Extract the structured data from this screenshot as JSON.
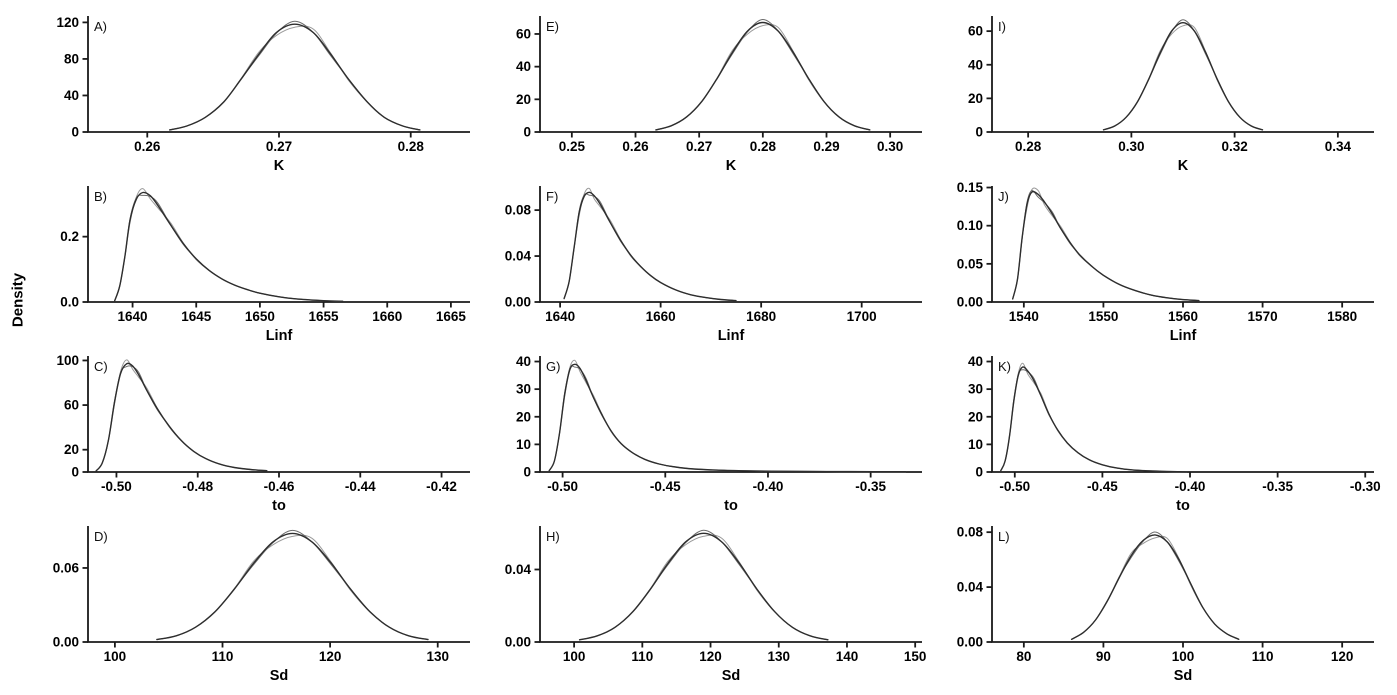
{
  "figure": {
    "ylabel": "Density",
    "colors": {
      "axis": "#1a1a1a",
      "curve_main": "#2e2e2e",
      "curve_alt1": "#9a9a9a",
      "curve_alt2": "#6b6b6b"
    }
  },
  "chart_data": [
    {
      "id": "A",
      "panel_label": "A)",
      "type": "line",
      "xlabel": "K",
      "xlim": [
        0.2555,
        0.2845
      ],
      "ylim": [
        0,
        127
      ],
      "xticks": [
        0.26,
        0.27,
        0.28
      ],
      "xtick_labels": [
        "0.26",
        "0.27",
        "0.28"
      ],
      "yticks": [
        0,
        40,
        80,
        120
      ],
      "ytick_labels": [
        "0",
        "40",
        "80",
        "120"
      ],
      "points": [
        [
          0.2617,
          2.3
        ],
        [
          0.263,
          6.6
        ],
        [
          0.2644,
          16
        ],
        [
          0.2658,
          32.8
        ],
        [
          0.2671,
          57.4
        ],
        [
          0.2685,
          85.7
        ],
        [
          0.2698,
          108.9
        ],
        [
          0.2712,
          118
        ],
        [
          0.2726,
          108.9
        ],
        [
          0.2739,
          85.7
        ],
        [
          0.2753,
          57.4
        ],
        [
          0.2767,
          32.8
        ],
        [
          0.278,
          16
        ],
        [
          0.2794,
          6.6
        ],
        [
          0.2807,
          2.3
        ]
      ]
    },
    {
      "id": "E",
      "panel_label": "E)",
      "type": "line",
      "xlabel": "K",
      "xlim": [
        0.245,
        0.305
      ],
      "ylim": [
        0,
        71
      ],
      "xticks": [
        0.25,
        0.26,
        0.27,
        0.28,
        0.29,
        0.3
      ],
      "xtick_labels": [
        "0.25",
        "0.26",
        "0.27",
        "0.28",
        "0.29",
        "0.30"
      ],
      "yticks": [
        0,
        20,
        40,
        60
      ],
      "ytick_labels": [
        "0",
        "20",
        "40",
        "60"
      ],
      "points": [
        [
          0.2632,
          1.3
        ],
        [
          0.2656,
          3.8
        ],
        [
          0.268,
          9.1
        ],
        [
          0.2704,
          18.6
        ],
        [
          0.2728,
          32.6
        ],
        [
          0.2752,
          48.6
        ],
        [
          0.2776,
          61.8
        ],
        [
          0.28,
          67
        ],
        [
          0.2824,
          61.8
        ],
        [
          0.2848,
          48.6
        ],
        [
          0.2872,
          32.6
        ],
        [
          0.2896,
          18.6
        ],
        [
          0.292,
          9.1
        ],
        [
          0.2944,
          3.8
        ],
        [
          0.2968,
          1.3
        ]
      ]
    },
    {
      "id": "I",
      "panel_label": "I)",
      "type": "line",
      "xlabel": "K",
      "xlim": [
        0.273,
        0.347
      ],
      "ylim": [
        0,
        69
      ],
      "xticks": [
        0.28,
        0.3,
        0.32,
        0.34
      ],
      "xtick_labels": [
        "0.28",
        "0.30",
        "0.32",
        "0.34"
      ],
      "yticks": [
        0,
        20,
        40,
        60
      ],
      "ytick_labels": [
        "0",
        "20",
        "40",
        "60"
      ],
      "points": [
        [
          0.2946,
          1.3
        ],
        [
          0.2968,
          3.6
        ],
        [
          0.299,
          8.8
        ],
        [
          0.3012,
          18.1
        ],
        [
          0.3034,
          31.6
        ],
        [
          0.3056,
          47.2
        ],
        [
          0.3078,
          60
        ],
        [
          0.31,
          65
        ],
        [
          0.3122,
          60
        ],
        [
          0.3144,
          47.2
        ],
        [
          0.3166,
          31.6
        ],
        [
          0.3188,
          18.1
        ],
        [
          0.321,
          8.8
        ],
        [
          0.3232,
          3.6
        ],
        [
          0.3254,
          1.3
        ]
      ]
    },
    {
      "id": "B",
      "panel_label": "B)",
      "type": "line",
      "xlabel": "Linf",
      "xlim": [
        1636.5,
        1666.5
      ],
      "ylim": [
        0,
        0.355
      ],
      "xticks": [
        1640,
        1645,
        1650,
        1655,
        1660,
        1665
      ],
      "xtick_labels": [
        "1640",
        "1645",
        "1650",
        "1655",
        "1660",
        "1665"
      ],
      "yticks": [
        0,
        0.2
      ],
      "ytick_labels": [
        "0.0",
        "0.2"
      ],
      "points": [
        [
          1638.6,
          0.004
        ],
        [
          1639.0,
          0.05
        ],
        [
          1639.4,
          0.14
        ],
        [
          1639.8,
          0.25
        ],
        [
          1640.3,
          0.315
        ],
        [
          1640.8,
          0.335
        ],
        [
          1641.4,
          0.325
        ],
        [
          1642,
          0.295
        ],
        [
          1643,
          0.235
        ],
        [
          1644,
          0.178
        ],
        [
          1645,
          0.132
        ],
        [
          1646,
          0.097
        ],
        [
          1647,
          0.071
        ],
        [
          1648,
          0.052
        ],
        [
          1649,
          0.038
        ],
        [
          1650,
          0.027
        ],
        [
          1651.5,
          0.016
        ],
        [
          1653,
          0.009
        ],
        [
          1655,
          0.004
        ],
        [
          1656.5,
          0.002
        ]
      ]
    },
    {
      "id": "F",
      "panel_label": "F)",
      "type": "line",
      "xlabel": "Linf",
      "xlim": [
        1636,
        1712
      ],
      "ylim": [
        0,
        0.101
      ],
      "xticks": [
        1640,
        1660,
        1680,
        1700
      ],
      "xtick_labels": [
        "1640",
        "1660",
        "1680",
        "1700"
      ],
      "yticks": [
        0,
        0.04,
        0.08
      ],
      "ytick_labels": [
        "0.00",
        "0.04",
        "0.08"
      ],
      "points": [
        [
          1640.8,
          0.003
        ],
        [
          1641.8,
          0.018
        ],
        [
          1642.8,
          0.048
        ],
        [
          1643.8,
          0.078
        ],
        [
          1644.8,
          0.092
        ],
        [
          1645.8,
          0.0955
        ],
        [
          1646.8,
          0.0925
        ],
        [
          1648,
          0.085
        ],
        [
          1650,
          0.069
        ],
        [
          1652,
          0.054
        ],
        [
          1654,
          0.041
        ],
        [
          1656,
          0.031
        ],
        [
          1658,
          0.023
        ],
        [
          1660,
          0.017
        ],
        [
          1663,
          0.0105
        ],
        [
          1666,
          0.0063
        ],
        [
          1669,
          0.0038
        ],
        [
          1672,
          0.0022
        ],
        [
          1675,
          0.0012
        ]
      ]
    },
    {
      "id": "J",
      "panel_label": "J)",
      "type": "line",
      "xlabel": "Linf",
      "xlim": [
        1536,
        1584
      ],
      "ylim": [
        0,
        0.152
      ],
      "xticks": [
        1540,
        1550,
        1560,
        1570,
        1580
      ],
      "xtick_labels": [
        "1540",
        "1550",
        "1560",
        "1570",
        "1580"
      ],
      "yticks": [
        0,
        0.05,
        0.1,
        0.15
      ],
      "ytick_labels": [
        "0.00",
        "0.05",
        "0.10",
        "0.15"
      ],
      "points": [
        [
          1538.6,
          0.004
        ],
        [
          1539.2,
          0.03
        ],
        [
          1539.8,
          0.085
        ],
        [
          1540.4,
          0.128
        ],
        [
          1541,
          0.144
        ],
        [
          1541.8,
          0.141
        ],
        [
          1542.6,
          0.131
        ],
        [
          1543.6,
          0.115
        ],
        [
          1544.6,
          0.097
        ],
        [
          1545.8,
          0.078
        ],
        [
          1547,
          0.062
        ],
        [
          1548.5,
          0.047
        ],
        [
          1550,
          0.035
        ],
        [
          1552,
          0.023
        ],
        [
          1554,
          0.015
        ],
        [
          1556,
          0.009
        ],
        [
          1558,
          0.0055
        ],
        [
          1560,
          0.0032
        ],
        [
          1562,
          0.0018
        ]
      ]
    },
    {
      "id": "C",
      "panel_label": "C)",
      "type": "line",
      "xlabel": "to",
      "xlim": [
        -0.507,
        -0.413
      ],
      "ylim": [
        0,
        104
      ],
      "xticks": [
        -0.5,
        -0.48,
        -0.46,
        -0.44,
        -0.42
      ],
      "xtick_labels": [
        "-0.50",
        "-0.48",
        "-0.46",
        "-0.44",
        "-0.42"
      ],
      "yticks": [
        0,
        20,
        60,
        100
      ],
      "ytick_labels": [
        "0",
        "20",
        "60",
        "100"
      ],
      "points": [
        [
          -0.505,
          1
        ],
        [
          -0.5035,
          8
        ],
        [
          -0.502,
          28
        ],
        [
          -0.5005,
          62
        ],
        [
          -0.499,
          88
        ],
        [
          -0.4975,
          97
        ],
        [
          -0.496,
          95
        ],
        [
          -0.4945,
          87
        ],
        [
          -0.4925,
          73
        ],
        [
          -0.49,
          57
        ],
        [
          -0.487,
          41
        ],
        [
          -0.484,
          28
        ],
        [
          -0.481,
          18.5
        ],
        [
          -0.478,
          12
        ],
        [
          -0.4745,
          7
        ],
        [
          -0.471,
          4
        ],
        [
          -0.467,
          2.2
        ],
        [
          -0.463,
          1.2
        ]
      ]
    },
    {
      "id": "G",
      "panel_label": "G)",
      "type": "line",
      "xlabel": "to",
      "xlim": [
        -0.511,
        -0.325
      ],
      "ylim": [
        0,
        42
      ],
      "xticks": [
        -0.5,
        -0.45,
        -0.4,
        -0.35
      ],
      "xtick_labels": [
        "-0.50",
        "-0.45",
        "-0.40",
        "-0.35"
      ],
      "yticks": [
        0,
        10,
        20,
        30,
        40
      ],
      "ytick_labels": [
        "0",
        "10",
        "20",
        "30",
        "40"
      ],
      "points": [
        [
          -0.5065,
          0.5
        ],
        [
          -0.504,
          4
        ],
        [
          -0.5015,
          14
        ],
        [
          -0.499,
          28
        ],
        [
          -0.4965,
          37
        ],
        [
          -0.494,
          39
        ],
        [
          -0.4915,
          37.5
        ],
        [
          -0.4885,
          33
        ],
        [
          -0.485,
          27
        ],
        [
          -0.481,
          21
        ],
        [
          -0.4765,
          15
        ],
        [
          -0.4715,
          10.3
        ],
        [
          -0.466,
          7
        ],
        [
          -0.46,
          4.6
        ],
        [
          -0.453,
          2.9
        ],
        [
          -0.445,
          1.8
        ],
        [
          -0.436,
          1.1
        ],
        [
          -0.425,
          0.7
        ],
        [
          -0.412,
          0.45
        ],
        [
          -0.398,
          0.3
        ],
        [
          -0.382,
          0.22
        ],
        [
          -0.365,
          0.16
        ],
        [
          -0.348,
          0.12
        ],
        [
          -0.333,
          0.1
        ]
      ]
    },
    {
      "id": "K",
      "panel_label": "K)",
      "type": "line",
      "xlabel": "to",
      "xlim": [
        -0.513,
        -0.295
      ],
      "ylim": [
        0,
        42
      ],
      "xticks": [
        -0.5,
        -0.45,
        -0.4,
        -0.35,
        -0.3
      ],
      "xtick_labels": [
        "-0.50",
        "-0.45",
        "-0.40",
        "-0.35",
        "-0.30"
      ],
      "yticks": [
        0,
        10,
        20,
        30,
        40
      ],
      "ytick_labels": [
        "0",
        "10",
        "20",
        "30",
        "40"
      ],
      "points": [
        [
          -0.508,
          0.5
        ],
        [
          -0.5055,
          4
        ],
        [
          -0.503,
          13
        ],
        [
          -0.5005,
          26
        ],
        [
          -0.498,
          35
        ],
        [
          -0.4955,
          38
        ],
        [
          -0.4925,
          36.5
        ],
        [
          -0.489,
          33
        ],
        [
          -0.485,
          27.5
        ],
        [
          -0.4805,
          21
        ],
        [
          -0.4755,
          15.2
        ],
        [
          -0.47,
          10.5
        ],
        [
          -0.464,
          7
        ],
        [
          -0.4575,
          4.4
        ],
        [
          -0.45,
          2.6
        ],
        [
          -0.4415,
          1.4
        ],
        [
          -0.432,
          0.7
        ],
        [
          -0.4215,
          0.35
        ],
        [
          -0.41,
          0.15
        ],
        [
          -0.402,
          0.08
        ]
      ]
    },
    {
      "id": "D",
      "panel_label": "D)",
      "type": "line",
      "xlabel": "Sd",
      "xlim": [
        97.5,
        133
      ],
      "ylim": [
        0,
        0.094
      ],
      "xticks": [
        100,
        110,
        120,
        130
      ],
      "xtick_labels": [
        "100",
        "110",
        "120",
        "130"
      ],
      "yticks": [
        0,
        0.06
      ],
      "ytick_labels": [
        "0.00",
        "0.06"
      ],
      "points": [
        [
          103.9,
          0.002
        ],
        [
          105.7,
          0.005
        ],
        [
          107.5,
          0.012
        ],
        [
          109.3,
          0.0245
        ],
        [
          111.1,
          0.0428
        ],
        [
          112.9,
          0.0639
        ],
        [
          114.7,
          0.0812
        ],
        [
          116.5,
          0.088
        ],
        [
          118.3,
          0.0812
        ],
        [
          120.1,
          0.0639
        ],
        [
          121.9,
          0.0428
        ],
        [
          123.7,
          0.0245
        ],
        [
          125.5,
          0.012
        ],
        [
          127.3,
          0.005
        ],
        [
          129.1,
          0.002
        ]
      ]
    },
    {
      "id": "H",
      "panel_label": "H)",
      "type": "line",
      "xlabel": "Sd",
      "xlim": [
        95,
        151
      ],
      "ylim": [
        0,
        0.064
      ],
      "xticks": [
        100,
        110,
        120,
        130,
        140,
        150
      ],
      "xtick_labels": [
        "100",
        "110",
        "120",
        "130",
        "140",
        "150"
      ],
      "yticks": [
        0,
        0.04
      ],
      "ytick_labels": [
        "0.00",
        "0.04"
      ],
      "points": [
        [
          100.8,
          0.0012
        ],
        [
          103.4,
          0.0034
        ],
        [
          106,
          0.0081
        ],
        [
          108.6,
          0.0167
        ],
        [
          111.2,
          0.0292
        ],
        [
          113.8,
          0.0436
        ],
        [
          116.4,
          0.0554
        ],
        [
          119,
          0.06
        ],
        [
          121.6,
          0.0554
        ],
        [
          124.2,
          0.0436
        ],
        [
          126.8,
          0.0292
        ],
        [
          129.4,
          0.0167
        ],
        [
          132,
          0.0081
        ],
        [
          134.6,
          0.0034
        ],
        [
          137.2,
          0.0012
        ]
      ]
    },
    {
      "id": "L",
      "panel_label": "L)",
      "type": "line",
      "xlabel": "Sd",
      "xlim": [
        76,
        124
      ],
      "ylim": [
        0,
        0.0845
      ],
      "xticks": [
        80,
        90,
        100,
        110,
        120
      ],
      "xtick_labels": [
        "80",
        "90",
        "100",
        "110",
        "120"
      ],
      "yticks": [
        0,
        0.04,
        0.08
      ],
      "ytick_labels": [
        "0.00",
        "0.04",
        "0.08"
      ],
      "points": [
        [
          86,
          0.002
        ],
        [
          87.5,
          0.007
        ],
        [
          89,
          0.016
        ],
        [
          90.5,
          0.03
        ],
        [
          92,
          0.047
        ],
        [
          93.5,
          0.063
        ],
        [
          95,
          0.074
        ],
        [
          96.5,
          0.078
        ],
        [
          98,
          0.073
        ],
        [
          99.5,
          0.06
        ],
        [
          101,
          0.042
        ],
        [
          102.5,
          0.025
        ],
        [
          104,
          0.013
        ],
        [
          105.5,
          0.006
        ],
        [
          107,
          0.002
        ]
      ]
    }
  ]
}
